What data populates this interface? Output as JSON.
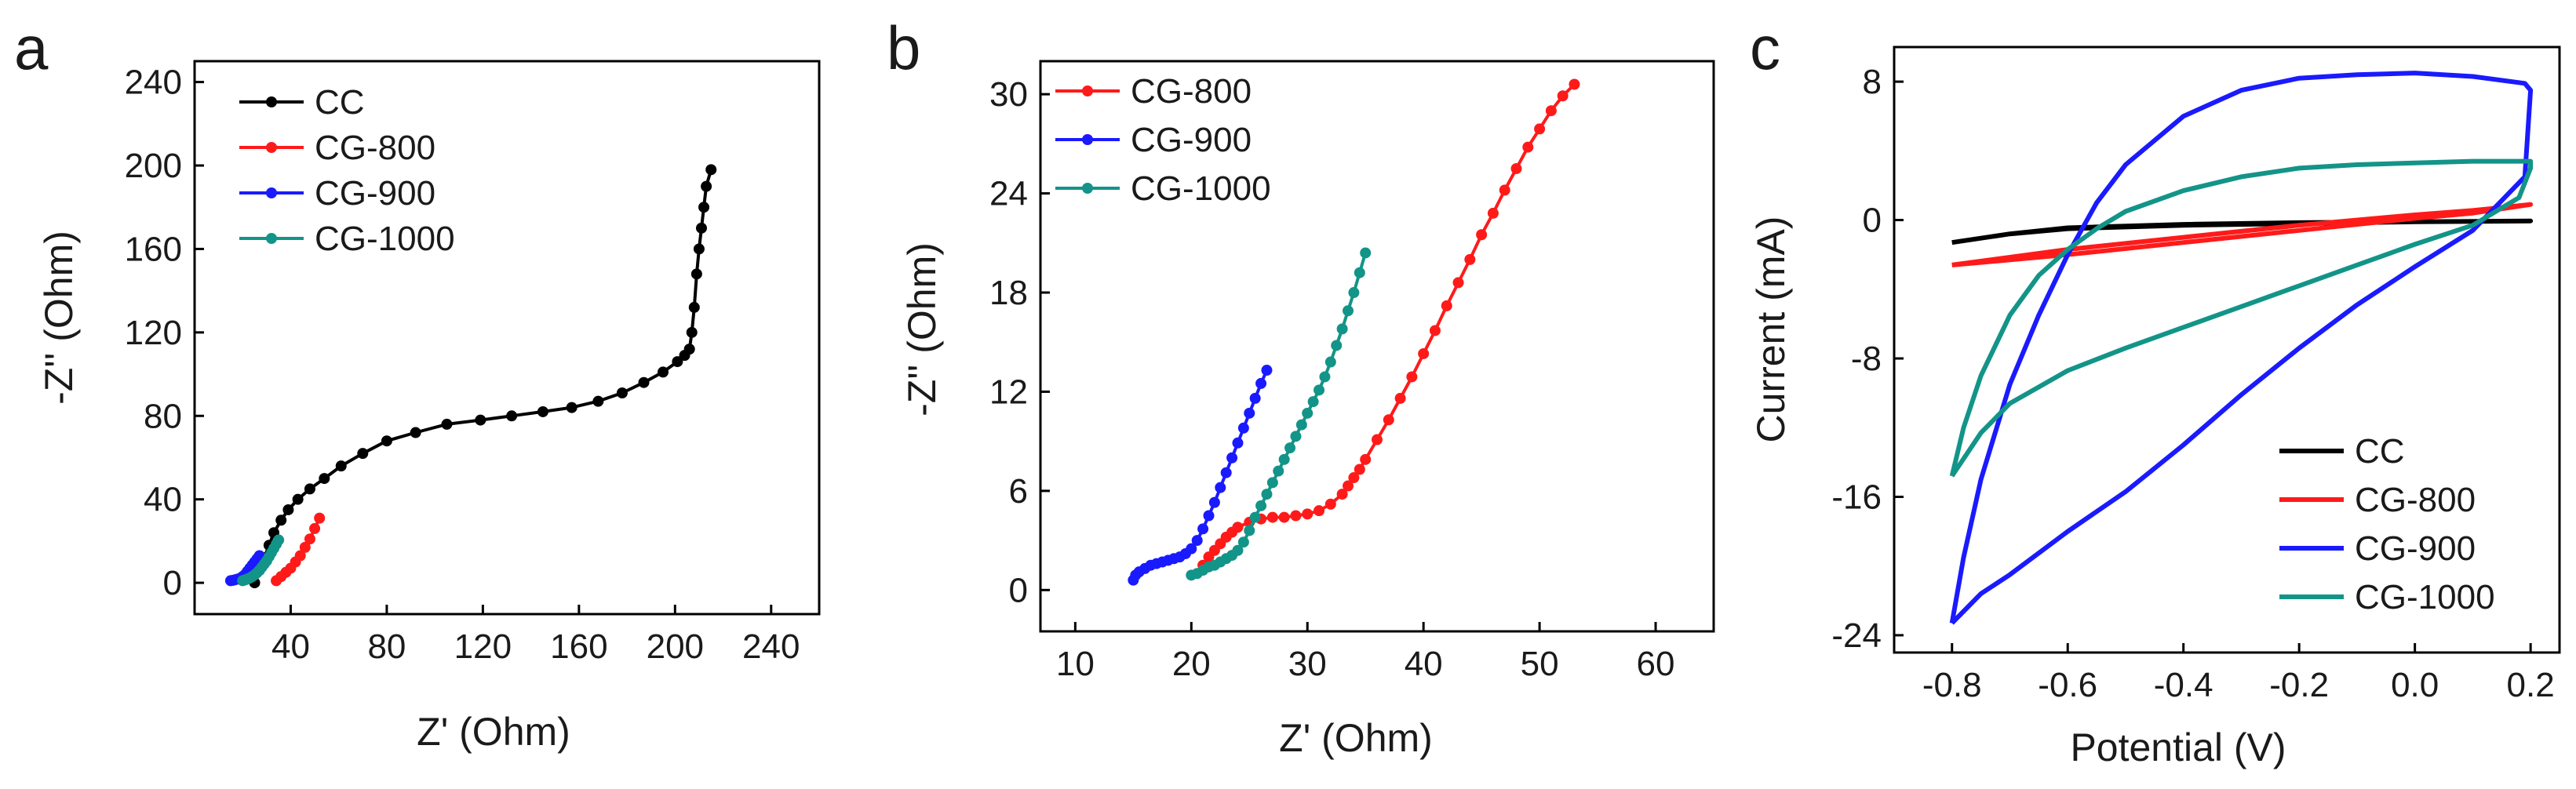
{
  "colors": {
    "CC": "#000000",
    "CG-800": "#ff1a1a",
    "CG-900": "#1a1aff",
    "CG-1000": "#139488"
  },
  "chart_data": [
    {
      "panel": "a",
      "type": "line",
      "xlabel": "Z' (Ohm)",
      "ylabel": "-Z'' (Ohm)",
      "xlim": [
        0,
        260
      ],
      "ylim": [
        -15,
        250
      ],
      "xticks": [
        40,
        80,
        120,
        160,
        200,
        240
      ],
      "yticks": [
        0,
        40,
        80,
        120,
        160,
        200,
        240
      ],
      "legend_position": "top-left",
      "markers": true,
      "series": [
        {
          "name": "CC",
          "x": [
            25,
            27,
            29,
            31,
            33,
            36,
            39,
            43,
            48,
            54,
            61,
            70,
            80,
            92,
            105,
            119,
            132,
            145,
            157,
            168,
            178,
            187,
            195,
            201,
            204,
            206,
            207,
            208,
            209,
            210,
            211,
            212,
            213,
            215
          ],
          "y": [
            0,
            6,
            12,
            18,
            24,
            30,
            35,
            40,
            45,
            50,
            56,
            62,
            68,
            72,
            76,
            78,
            80,
            82,
            84,
            87,
            91,
            96,
            101,
            106,
            109,
            112,
            120,
            132,
            148,
            160,
            170,
            180,
            190,
            198
          ]
        },
        {
          "name": "CG-800",
          "x": [
            34,
            36,
            38,
            40,
            42,
            44,
            46,
            48,
            50,
            52
          ],
          "y": [
            1,
            3,
            5,
            7,
            10,
            13,
            17,
            21,
            26,
            31
          ]
        },
        {
          "name": "CG-900",
          "x": [
            15,
            16,
            17,
            18,
            19,
            20,
            21,
            22,
            23,
            24,
            25,
            26,
            27
          ],
          "y": [
            1,
            1.2,
            1.5,
            1.8,
            2.2,
            3,
            4,
            5.5,
            7,
            8.5,
            10,
            11.5,
            13
          ]
        },
        {
          "name": "CG-1000",
          "x": [
            20,
            21,
            22,
            23,
            24,
            25,
            26,
            27,
            28,
            29,
            30,
            31,
            32,
            33,
            34,
            35
          ],
          "y": [
            1,
            1.4,
            1.8,
            2.3,
            3,
            3.8,
            4.8,
            6,
            7.5,
            9,
            10.5,
            12.5,
            14.5,
            16.5,
            18.5,
            20.5
          ]
        }
      ]
    },
    {
      "panel": "b",
      "type": "line",
      "xlabel": "Z' (Ohm)",
      "ylabel": "-Z'' (Ohm)",
      "xlim": [
        7,
        65
      ],
      "ylim": [
        -2.5,
        32
      ],
      "xticks": [
        10,
        20,
        30,
        40,
        50,
        60
      ],
      "yticks": [
        0,
        6,
        12,
        18,
        24,
        30
      ],
      "legend_position": "top-left",
      "markers": true,
      "series": [
        {
          "name": "CG-800",
          "x": [
            21,
            21.5,
            22,
            22.5,
            23,
            23.5,
            24,
            25,
            26,
            27,
            28,
            29,
            30,
            31,
            32,
            33,
            33.5,
            34,
            34.5,
            35,
            36,
            37,
            38,
            39,
            40,
            41,
            42,
            43,
            44,
            45,
            46,
            47,
            48,
            49,
            50,
            51,
            52,
            53
          ],
          "y": [
            1.5,
            2,
            2.4,
            2.8,
            3.2,
            3.5,
            3.8,
            4.1,
            4.3,
            4.4,
            4.4,
            4.5,
            4.6,
            4.8,
            5.2,
            5.8,
            6.3,
            6.8,
            7.3,
            7.9,
            9.1,
            10.3,
            11.6,
            12.9,
            14.3,
            15.7,
            17.2,
            18.6,
            20.0,
            21.5,
            22.8,
            24.2,
            25.5,
            26.8,
            27.9,
            29.0,
            29.9,
            30.6
          ]
        },
        {
          "name": "CG-900",
          "x": [
            15,
            15.2,
            15.5,
            16,
            16.5,
            17,
            17.5,
            18,
            18.5,
            19,
            19.5,
            20,
            20.5,
            21,
            21.5,
            22,
            22.5,
            23,
            23.5,
            24,
            24.5,
            25,
            25.5,
            26,
            26.5
          ],
          "y": [
            0.6,
            0.9,
            1.1,
            1.3,
            1.5,
            1.6,
            1.7,
            1.8,
            1.9,
            2.0,
            2.2,
            2.5,
            3.0,
            3.7,
            4.5,
            5.3,
            6.2,
            7.1,
            8.0,
            8.9,
            9.8,
            10.7,
            11.6,
            12.5,
            13.3
          ]
        },
        {
          "name": "CG-1000",
          "x": [
            20,
            20.5,
            21,
            21.5,
            22,
            22.5,
            23,
            23.5,
            24,
            24.5,
            25,
            25.5,
            26,
            26.5,
            27,
            27.5,
            28,
            28.5,
            29,
            29.5,
            30,
            30.5,
            31,
            31.5,
            32,
            32.5,
            33,
            33.5,
            34,
            34.5,
            35
          ],
          "y": [
            0.9,
            1.0,
            1.2,
            1.4,
            1.5,
            1.7,
            1.9,
            2.1,
            2.4,
            2.9,
            3.6,
            4.4,
            5.1,
            5.8,
            6.5,
            7.2,
            7.9,
            8.6,
            9.3,
            10.0,
            10.7,
            11.4,
            12.1,
            12.9,
            13.8,
            14.8,
            15.8,
            16.9,
            18.0,
            19.2,
            20.4
          ]
        }
      ]
    },
    {
      "panel": "c",
      "type": "line",
      "xlabel": "Potential (V)",
      "ylabel": "Current (mA)",
      "xlim": [
        -0.9,
        0.25
      ],
      "ylim": [
        -25,
        10
      ],
      "xticks": [
        -0.8,
        -0.6,
        -0.4,
        -0.2,
        0.0,
        0.2
      ],
      "xtick_labels": [
        "-0.8",
        "-0.6",
        "-0.4",
        "-0.2",
        "0.0",
        "0.2"
      ],
      "yticks": [
        -24,
        -16,
        -8,
        0,
        8
      ],
      "legend_position": "bottom-right",
      "markers": false,
      "series": [
        {
          "name": "CC",
          "x": [
            -0.8,
            -0.7,
            -0.6,
            -0.4,
            -0.2,
            0.0,
            0.2,
            0.0,
            -0.2,
            -0.4,
            -0.6,
            -0.7,
            -0.8
          ],
          "y": [
            -1.3,
            -0.8,
            -0.45,
            -0.25,
            -0.15,
            -0.1,
            -0.05,
            -0.1,
            -0.2,
            -0.3,
            -0.5,
            -0.8,
            -1.3
          ]
        },
        {
          "name": "CG-800",
          "x": [
            -0.8,
            -0.6,
            -0.4,
            -0.2,
            0.0,
            0.1,
            0.2,
            0.1,
            0.0,
            -0.2,
            -0.4,
            -0.6,
            -0.8
          ],
          "y": [
            -2.6,
            -1.7,
            -1.0,
            -0.3,
            0.3,
            0.55,
            0.9,
            0.4,
            0.1,
            -0.6,
            -1.3,
            -2.0,
            -2.6
          ]
        },
        {
          "name": "CG-900",
          "x": [
            -0.8,
            -0.78,
            -0.75,
            -0.7,
            -0.65,
            -0.6,
            -0.55,
            -0.5,
            -0.4,
            -0.3,
            -0.2,
            -0.1,
            0.0,
            0.1,
            0.19,
            0.2,
            0.19,
            0.1,
            0.0,
            -0.1,
            -0.2,
            -0.3,
            -0.4,
            -0.5,
            -0.6,
            -0.7,
            -0.75,
            -0.8
          ],
          "y": [
            -23.3,
            -19.5,
            -15.0,
            -9.5,
            -5.5,
            -2.0,
            1.0,
            3.2,
            6.0,
            7.5,
            8.2,
            8.4,
            8.5,
            8.3,
            7.9,
            7.5,
            2.5,
            -0.6,
            -2.7,
            -4.9,
            -7.4,
            -10.1,
            -13.0,
            -15.7,
            -18.0,
            -20.5,
            -21.6,
            -23.3
          ]
        },
        {
          "name": "CG-1000",
          "x": [
            -0.8,
            -0.78,
            -0.75,
            -0.7,
            -0.65,
            -0.6,
            -0.55,
            -0.5,
            -0.4,
            -0.3,
            -0.2,
            -0.1,
            0.0,
            0.1,
            0.2,
            0.2,
            0.18,
            0.1,
            0.0,
            -0.1,
            -0.2,
            -0.3,
            -0.4,
            -0.5,
            -0.6,
            -0.7,
            -0.75,
            -0.8
          ],
          "y": [
            -14.8,
            -12.0,
            -9.0,
            -5.5,
            -3.2,
            -1.7,
            -0.5,
            0.5,
            1.7,
            2.5,
            3.0,
            3.2,
            3.3,
            3.4,
            3.4,
            3.0,
            1.3,
            -0.3,
            -1.4,
            -2.6,
            -3.8,
            -5.0,
            -6.2,
            -7.4,
            -8.7,
            -10.6,
            -12.3,
            -14.8
          ]
        }
      ]
    }
  ]
}
